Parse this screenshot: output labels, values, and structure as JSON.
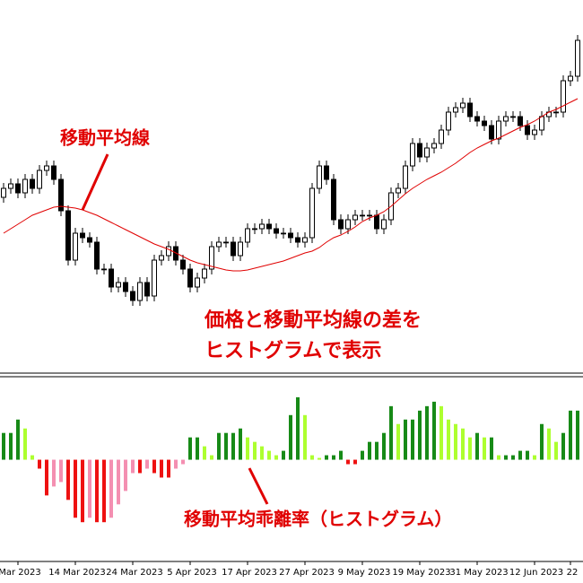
{
  "chart_data": [
    {
      "type": "candlestick",
      "up_color": "#ffffff",
      "down_color": "#000000",
      "edge_color": "#000000",
      "open": [
        200,
        210,
        215,
        205,
        220,
        210,
        230,
        235,
        220,
        185,
        130,
        160,
        155,
        150,
        120,
        120,
        100,
        105,
        95,
        85,
        105,
        90,
        130,
        135,
        145,
        130,
        120,
        100,
        110,
        120,
        145,
        150,
        150,
        135,
        150,
        165,
        165,
        170,
        165,
        160,
        160,
        155,
        150,
        155,
        210,
        235,
        220,
        175,
        165,
        175,
        180,
        180,
        180,
        165,
        175,
        205,
        210,
        235,
        260,
        245,
        255,
        260,
        275,
        295,
        300,
        305,
        290,
        285,
        280,
        265,
        285,
        290,
        290,
        280,
        270,
        275,
        290,
        295,
        295,
        330,
        335
      ],
      "high": [
        216,
        221,
        221,
        226,
        226,
        236,
        241,
        241,
        226,
        191,
        166,
        166,
        161,
        156,
        126,
        126,
        111,
        111,
        101,
        111,
        111,
        136,
        141,
        151,
        151,
        136,
        126,
        116,
        126,
        151,
        156,
        156,
        156,
        156,
        171,
        171,
        176,
        176,
        171,
        166,
        166,
        161,
        161,
        216,
        241,
        241,
        226,
        181,
        181,
        186,
        186,
        186,
        186,
        181,
        211,
        216,
        241,
        266,
        266,
        261,
        266,
        281,
        301,
        306,
        311,
        311,
        296,
        291,
        286,
        291,
        296,
        296,
        296,
        286,
        281,
        296,
        301,
        301,
        336,
        341,
        381
      ],
      "low": [
        194,
        204,
        199,
        199,
        204,
        204,
        224,
        214,
        179,
        124,
        124,
        149,
        144,
        114,
        114,
        94,
        94,
        89,
        79,
        79,
        84,
        84,
        124,
        129,
        124,
        114,
        94,
        94,
        104,
        114,
        139,
        144,
        129,
        129,
        144,
        159,
        159,
        159,
        154,
        154,
        149,
        144,
        144,
        149,
        204,
        214,
        169,
        159,
        159,
        169,
        174,
        174,
        159,
        159,
        169,
        199,
        204,
        229,
        239,
        239,
        249,
        254,
        269,
        289,
        294,
        284,
        279,
        274,
        259,
        259,
        279,
        284,
        274,
        264,
        264,
        269,
        284,
        289,
        289,
        324,
        329
      ],
      "close": [
        210,
        215,
        205,
        220,
        210,
        230,
        235,
        220,
        185,
        130,
        160,
        155,
        150,
        120,
        120,
        100,
        105,
        95,
        85,
        105,
        90,
        130,
        135,
        145,
        130,
        120,
        100,
        110,
        120,
        145,
        150,
        150,
        135,
        150,
        165,
        165,
        170,
        165,
        160,
        160,
        155,
        150,
        155,
        210,
        235,
        220,
        175,
        165,
        175,
        180,
        180,
        180,
        165,
        175,
        205,
        210,
        235,
        260,
        245,
        255,
        260,
        275,
        295,
        300,
        305,
        290,
        285,
        280,
        265,
        285,
        290,
        290,
        280,
        270,
        275,
        290,
        295,
        295,
        330,
        335,
        375
      ],
      "ma": {
        "color": "#e00000",
        "values": [
          160,
          165,
          170,
          175,
          180,
          183,
          186,
          189,
          190,
          189,
          188,
          186,
          183,
          180,
          176,
          172,
          168,
          164,
          160,
          156,
          152,
          148,
          145,
          142,
          138,
          134,
          130,
          127,
          125,
          123,
          121,
          119,
          118,
          118,
          119,
          121,
          123,
          125,
          127,
          129,
          132,
          135,
          138,
          140,
          144,
          150,
          155,
          158,
          162,
          167,
          173,
          177,
          180,
          184,
          190,
          197,
          204,
          210,
          215,
          220,
          224,
          228,
          233,
          238,
          244,
          250,
          255,
          259,
          263,
          266,
          270,
          274,
          278,
          281,
          285,
          290,
          295,
          298,
          302,
          306,
          310
        ]
      },
      "ylim": [
        0,
        420
      ],
      "annotations": [
        "移動平均線",
        "価格と移動平均線の差を",
        "ヒストグラムで表示"
      ]
    },
    {
      "type": "bar",
      "categories": [
        null,
        null,
        "Mar 2023",
        null,
        null,
        null,
        null,
        null,
        null,
        null,
        "14 Mar 2023",
        null,
        null,
        null,
        null,
        null,
        null,
        null,
        "24 Mar 2023",
        null,
        null,
        null,
        null,
        null,
        null,
        null,
        "5 Apr 2023",
        null,
        null,
        null,
        null,
        null,
        null,
        null,
        "17 Apr 2023",
        null,
        null,
        null,
        null,
        null,
        null,
        null,
        "27 Apr 2023",
        null,
        null,
        null,
        null,
        null,
        null,
        null,
        "9 May 2023",
        null,
        null,
        null,
        null,
        null,
        null,
        null,
        "19 May 2023",
        null,
        null,
        null,
        null,
        null,
        null,
        null,
        "31 May 2023",
        null,
        null,
        null,
        null,
        null,
        null,
        null,
        "12 Jun 2023",
        null,
        null,
        null,
        null,
        "22",
        null
      ],
      "values": [
        30,
        30,
        45,
        35,
        5,
        -10,
        -40,
        -30,
        -25,
        -45,
        -65,
        -70,
        -65,
        -70,
        -70,
        -65,
        -50,
        -35,
        -15,
        -15,
        -10,
        -15,
        -20,
        -20,
        -10,
        -5,
        25,
        25,
        15,
        5,
        30,
        30,
        30,
        35,
        25,
        20,
        15,
        10,
        5,
        10,
        50,
        70,
        50,
        5,
        2,
        5,
        5,
        10,
        -5,
        -5,
        10,
        20,
        20,
        30,
        60,
        40,
        45,
        45,
        55,
        60,
        65,
        60,
        45,
        40,
        35,
        25,
        30,
        25,
        25,
        5,
        5,
        5,
        10,
        10,
        5,
        40,
        35,
        20,
        30,
        55,
        55
      ],
      "colors": {
        "positive_rising": "#178a17",
        "positive_falling": "#adff2f",
        "negative_falling": "#ee1111",
        "negative_rising": "#f48fb1"
      },
      "ylim": [
        -113,
        92
      ],
      "annotation": "移動平均乖離率（ヒストグラム）"
    }
  ]
}
